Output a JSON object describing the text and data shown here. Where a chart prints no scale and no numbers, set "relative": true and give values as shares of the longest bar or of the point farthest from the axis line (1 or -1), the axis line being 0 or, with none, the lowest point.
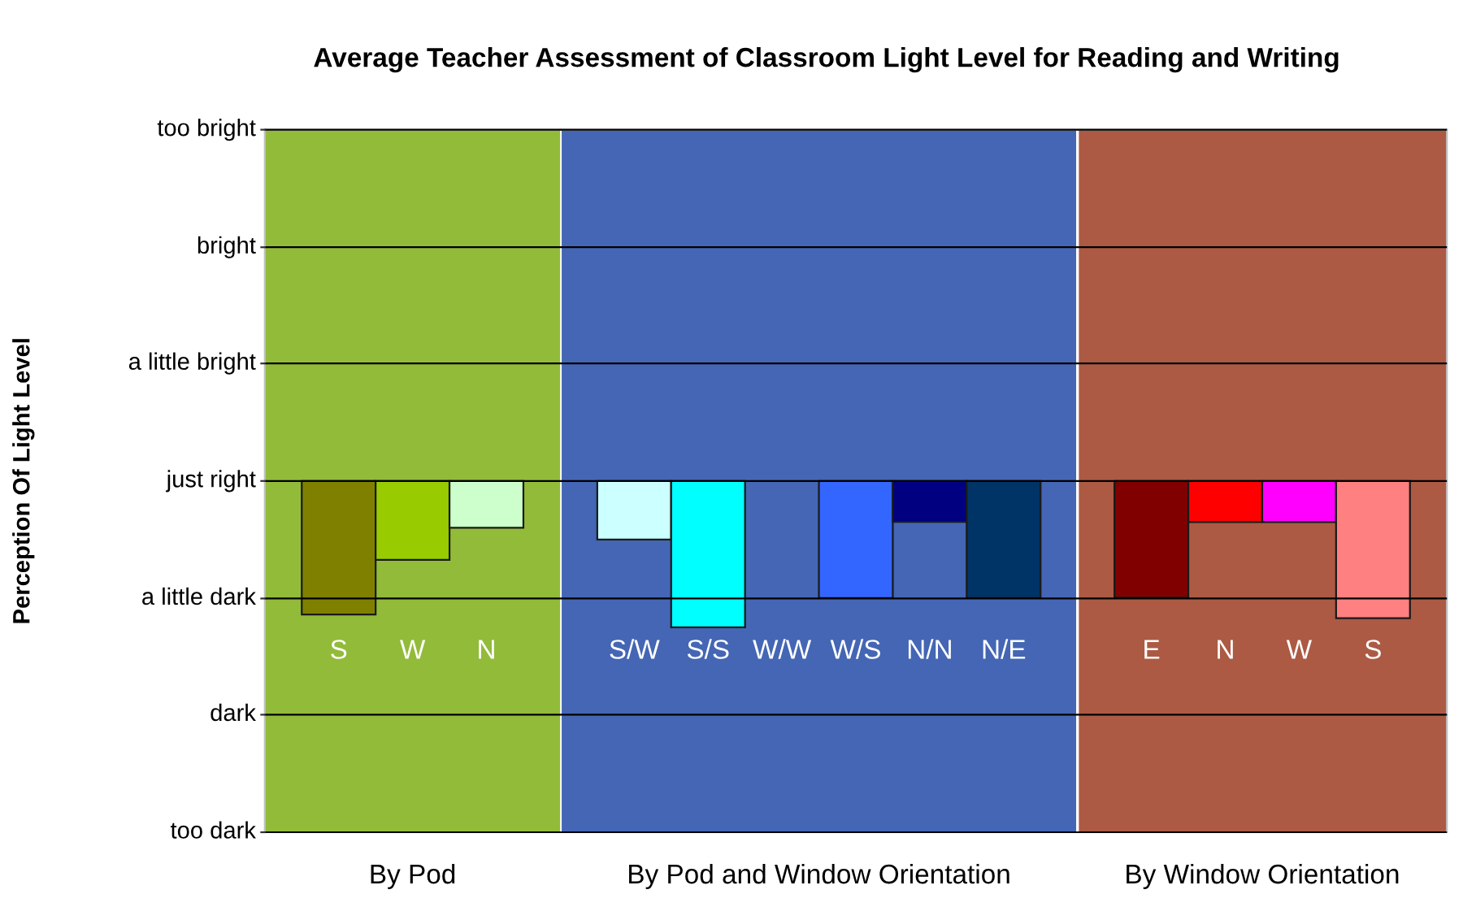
{
  "chart_data": [
    {
      "type": "bar",
      "title": "Average Teacher Assessment of Classroom Light Level for Reading and Writing",
      "ylabel": "Perception Of Light Level",
      "xlabel": "By Pod",
      "categories": [
        "S",
        "W",
        "N"
      ],
      "values": [
        -1,
        -0.59,
        -0.35
      ],
      "colors": [
        "#808000",
        "#99cc00",
        "#ccffcc"
      ],
      "relative": true,
      "ref_lines": [
        {
          "axis": "y",
          "value": -2.63,
          "label": "too dark"
        },
        {
          "axis": "y",
          "value": -1.75,
          "label": "dark"
        },
        {
          "axis": "y",
          "value": -0.88,
          "label": "a little dark"
        },
        {
          "axis": "y",
          "value": 0,
          "label": "just right"
        },
        {
          "axis": "y",
          "value": 0.88,
          "label": "a little bright"
        },
        {
          "axis": "y",
          "value": 1.75,
          "label": "bright"
        },
        {
          "axis": "y",
          "value": 2.63,
          "label": "too bright"
        }
      ],
      "bands": [
        {
          "axis": "y",
          "from": -2.63,
          "to": 2.63,
          "color": "#92bb3a"
        }
      ]
    },
    {
      "type": "bar",
      "xlabel": "By Pod and Window Orientation",
      "categories": [
        "S/W",
        "S/S",
        "W/W",
        "W/S",
        "N/N",
        "N/E"
      ],
      "values": [
        -0.4,
        -1,
        null,
        -0.8,
        -0.28,
        -0.8
      ],
      "colors": [
        "#ccffff",
        "#00ffff",
        null,
        "#3366ff",
        "#000080",
        "#003366"
      ],
      "relative": true,
      "bands": [
        {
          "axis": "y",
          "from": -2.4,
          "to": 2.4,
          "color": "#4466b4"
        }
      ]
    },
    {
      "type": "bar",
      "xlabel": "By Window Orientation",
      "categories": [
        "E",
        "N",
        "W",
        "S"
      ],
      "values": [
        -0.85,
        -0.3,
        -0.3,
        -1
      ],
      "colors": [
        "#800000",
        "#ff0000",
        "#ff00ff",
        "#ff8080"
      ],
      "relative": true,
      "bands": [
        {
          "axis": "y",
          "from": -2.56,
          "to": 2.56,
          "color": "#ac5a44"
        }
      ]
    }
  ]
}
